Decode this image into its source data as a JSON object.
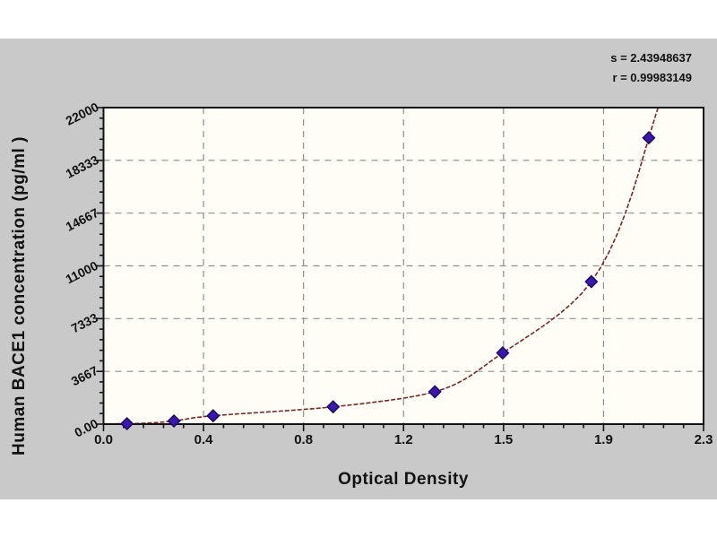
{
  "figure": {
    "background": "#ffffff",
    "panel_color": "#c9c9c9",
    "plot_bg": "#fffdf6",
    "frame_color": "#141414",
    "grid_color": "#8f8f8f"
  },
  "chart_data": {
    "type": "scatter",
    "title": "",
    "xlabel": "Optical Density",
    "ylabel": "Human BACE1 concentration (pg/ml )",
    "legend": "none",
    "grid": "dashed",
    "x_axis": {
      "min": 0,
      "max": 2.3,
      "tick_labels": [
        "0.0",
        "0.4",
        "0.8",
        "1.2",
        "1.5",
        "1.9",
        "2.3"
      ]
    },
    "y_axis": {
      "min": 0,
      "max": 22000,
      "tick_labels": [
        "0.00",
        "3667",
        "7333",
        "11000",
        "14667",
        "18333",
        "22000"
      ]
    },
    "series": [
      {
        "name": "standard-points",
        "type": "scatter",
        "marker": "diamond",
        "color": "#3a17b0",
        "edge_color": "#1c0b60",
        "points": [
          [
            0.09,
            30
          ],
          [
            0.27,
            220
          ],
          [
            0.42,
            580
          ],
          [
            0.88,
            1200
          ],
          [
            1.27,
            2250
          ],
          [
            1.53,
            4950
          ],
          [
            1.87,
            9900
          ],
          [
            2.09,
            19900
          ]
        ]
      },
      {
        "name": "fitted-curve",
        "type": "line",
        "color": "#7b2626",
        "extension": [
          [
            0.0,
            15
          ],
          [
            2.145,
            22800
          ]
        ]
      }
    ],
    "annotations": [
      "s = 2.43948637",
      "r = 0.99983149"
    ]
  }
}
